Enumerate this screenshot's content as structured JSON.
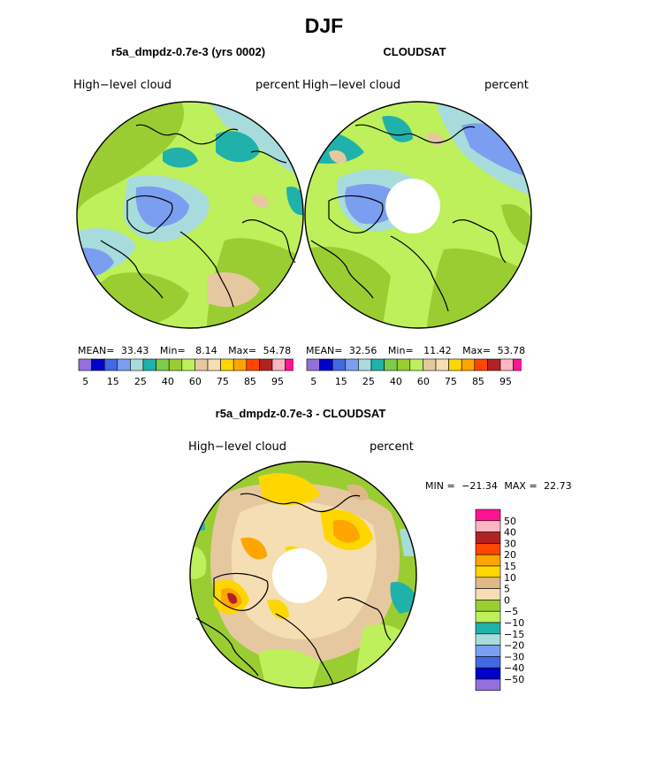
{
  "page": {
    "main_title": "DJF"
  },
  "panels": [
    {
      "id": "model",
      "title": "r5a_dmpdz-0.7e-3 (yrs 0002)",
      "variable": "High−level cloud",
      "units": "percent",
      "stats": {
        "mean_label": "MEAN=",
        "mean": "33.43",
        "min_label": "Min=",
        "min": "8.14",
        "max_label": "Max=",
        "max": "54.78"
      },
      "has_pole_hole": false
    },
    {
      "id": "obs",
      "title": "CLOUDSAT",
      "variable": "High−level cloud",
      "units": "percent",
      "stats": {
        "mean_label": "MEAN=",
        "mean": "32.56",
        "min_label": "Min=",
        "min": "11.42",
        "max_label": "Max=",
        "max": "53.78"
      },
      "has_pole_hole": true
    },
    {
      "id": "diff",
      "title": "r5a_dmpdz-0.7e-3 - CLOUDSAT",
      "variable": "High−level cloud",
      "units": "percent",
      "stats": {
        "min_label": "MIN =",
        "min": "−21.34",
        "max_label": "MAX =",
        "max": "22.73"
      },
      "has_pole_hole": true
    }
  ],
  "chart_data": [
    {
      "type": "heatmap",
      "projection": "north-polar-stereographic",
      "title": "r5a_dmpdz-0.7e-3 (yrs 0002)",
      "field": "High-level cloud",
      "units": "percent",
      "mean": 33.43,
      "min": 8.14,
      "max": 54.78,
      "colorbar": {
        "orientation": "horizontal",
        "levels": [
          5,
          10,
          15,
          20,
          25,
          30,
          35,
          40,
          50,
          60,
          65,
          70,
          75,
          80,
          85,
          90,
          95
        ],
        "tick_labels": [
          "5",
          "15",
          "25",
          "40",
          "60",
          "75",
          "85",
          "95"
        ],
        "colors": [
          "#9370db",
          "#0000cd",
          "#4169e1",
          "#7b9ef0",
          "#a8dcdc",
          "#20b2aa",
          "#7ccd4a",
          "#9acd32",
          "#bdf05a",
          "#e6c8a0",
          "#f5deb3",
          "#ffd700",
          "#ffa500",
          "#ff4500",
          "#b22222",
          "#ffb6c1",
          "#ff1493"
        ]
      }
    },
    {
      "type": "heatmap",
      "projection": "north-polar-stereographic",
      "title": "CLOUDSAT",
      "field": "High-level cloud",
      "units": "percent",
      "mean": 32.56,
      "min": 11.42,
      "max": 53.78,
      "colorbar": {
        "orientation": "horizontal",
        "levels": [
          5,
          10,
          15,
          20,
          25,
          30,
          35,
          40,
          50,
          60,
          65,
          70,
          75,
          80,
          85,
          90,
          95
        ],
        "tick_labels": [
          "5",
          "15",
          "25",
          "40",
          "60",
          "75",
          "85",
          "95"
        ],
        "colors": [
          "#9370db",
          "#0000cd",
          "#4169e1",
          "#7b9ef0",
          "#a8dcdc",
          "#20b2aa",
          "#7ccd4a",
          "#9acd32",
          "#bdf05a",
          "#e6c8a0",
          "#f5deb3",
          "#ffd700",
          "#ffa500",
          "#ff4500",
          "#b22222",
          "#ffb6c1",
          "#ff1493"
        ]
      }
    },
    {
      "type": "heatmap",
      "projection": "north-polar-stereographic",
      "title": "r5a_dmpdz-0.7e-3 - CLOUDSAT",
      "field": "High-level cloud",
      "units": "percent",
      "min": -21.34,
      "max": 22.73,
      "colorbar": {
        "orientation": "vertical",
        "levels": [
          "50",
          "40",
          "30",
          "20",
          "15",
          "10",
          "5",
          "0",
          "−5",
          "−10",
          "−15",
          "−20",
          "−30",
          "−40",
          "−50"
        ],
        "colors": [
          "#ff1493",
          "#ffb6c1",
          "#b22222",
          "#ff4500",
          "#ffa500",
          "#ffd700",
          "#deb887",
          "#f5deb3",
          "#9acd32",
          "#bdf05a",
          "#20b2aa",
          "#a8dcdc",
          "#7b9ef0",
          "#4169e1",
          "#0000cd",
          "#9370db"
        ]
      }
    }
  ]
}
